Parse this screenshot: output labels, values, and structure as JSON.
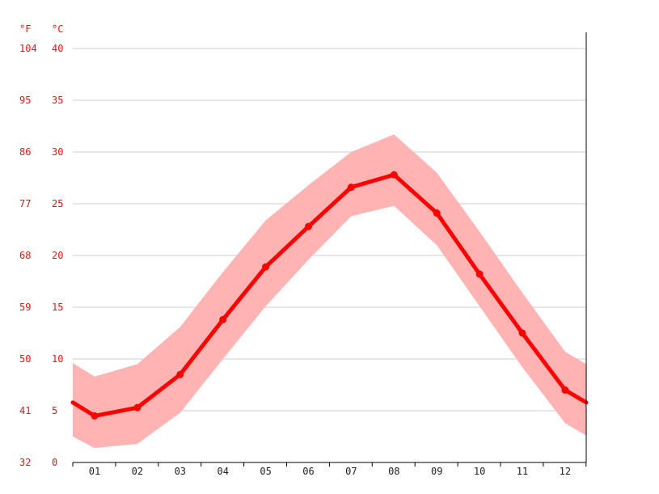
{
  "chart_data": {
    "type": "line",
    "units": {
      "fahrenheit": "°F",
      "celsius": "°C"
    },
    "y_ticks_celsius": [
      "0",
      "5",
      "10",
      "15",
      "20",
      "25",
      "30",
      "35",
      "40"
    ],
    "y_ticks_fahrenheit": [
      "32",
      "41",
      "50",
      "59",
      "68",
      "77",
      "86",
      "95",
      "104"
    ],
    "ylim": [
      0,
      40
    ],
    "categories": [
      "01",
      "02",
      "03",
      "04",
      "05",
      "06",
      "07",
      "08",
      "09",
      "10",
      "11",
      "12"
    ],
    "series": [
      {
        "values": [
          4.5,
          5.3,
          8.5,
          13.8,
          18.9,
          22.8,
          26.6,
          27.8,
          24.1,
          18.2,
          12.5,
          7.0
        ],
        "color": "#ff0000"
      }
    ],
    "band": {
      "upper": [
        8.3,
        9.5,
        13.1,
        18.4,
        23.4,
        26.8,
        30.0,
        31.7,
        28.0,
        22.3,
        16.4,
        10.7
      ],
      "lower": [
        1.4,
        1.8,
        4.8,
        10.0,
        15.1,
        19.6,
        23.8,
        24.8,
        21.0,
        15.1,
        9.2,
        3.8
      ],
      "color": "#ffb3b3"
    },
    "edge_values": {
      "start": [
        2.5,
        5.8,
        9.6
      ],
      "end": [
        2.6,
        5.8,
        9.5
      ]
    },
    "grid": true,
    "gridline_color": "#cccccc"
  }
}
